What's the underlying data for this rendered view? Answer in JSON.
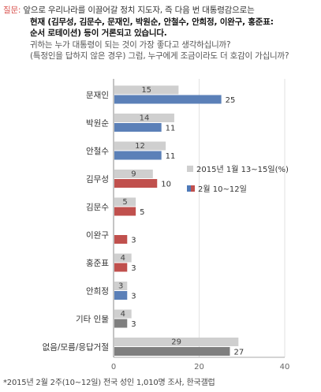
{
  "question": {
    "label": "질문:",
    "line1": "앞으로 우리나라를 이끌어갈 정치 지도자, 즉 다음 번 대통령감으로는",
    "line2": "현재 (김무성, 김문수, 문재인, 박원순, 안철수, 안희정, 이완구, 홍준표:",
    "line3": "순서 로테이션) 등이 거론되고 있습니다.",
    "line4": "귀하는 누가 대통령이 되는 것이 가장 좋다고 생각하십니까?",
    "line5": "(특정인을 답하지 않은 경우) 그럼, 누구에게 조금이라도 더 호감이 가십니까?"
  },
  "chart_data": {
    "type": "bar",
    "orientation": "horizontal",
    "categories": [
      "문재인",
      "박원순",
      "안철수",
      "김무성",
      "김문수",
      "이완구",
      "홍준표",
      "안희정",
      "기타 인물",
      "없음/모름/응답거절"
    ],
    "series": [
      {
        "name": "2015년 1월 13~15일(%)",
        "values": [
          15,
          14,
          12,
          9,
          5,
          null,
          4,
          3,
          4,
          29
        ],
        "labels": [
          "15",
          "14",
          "12",
          "9",
          "5",
          "",
          "4",
          "3",
          "4",
          "29"
        ]
      },
      {
        "name": "2월 10~12일",
        "values": [
          25,
          11,
          11,
          10,
          5,
          3,
          3,
          3,
          3,
          27
        ],
        "labels": [
          "25",
          "11",
          "11",
          "10",
          "5",
          "3",
          "3",
          "3",
          "3",
          "27"
        ]
      }
    ],
    "xlim": [
      0,
      40
    ],
    "xticks": [
      "0",
      "20",
      "40"
    ],
    "legend": {
      "position": "right",
      "entries": [
        "2015년 1월 13~15일(%)",
        "2월 10~12일"
      ]
    },
    "grid": true
  },
  "colors": {
    "series1": "#cfcfcf",
    "blue": "#5b80b8",
    "red": "#c0504d",
    "gray": "#7f7f7f",
    "legend_blue": "#4f7ab8"
  },
  "footnote": "*2015년 2월 2주(10~12일) 전국 성인 1,010명 조사, 한국갤럽"
}
